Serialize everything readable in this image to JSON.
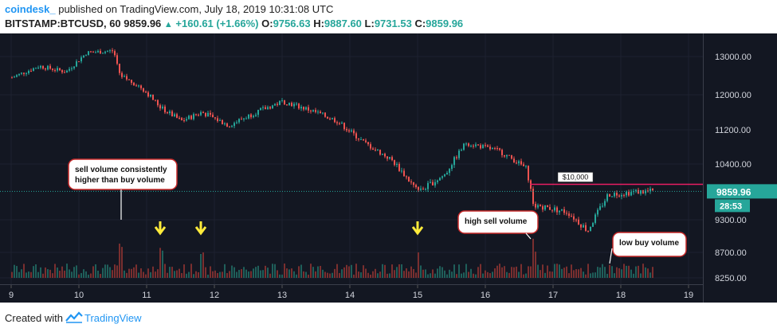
{
  "header": {
    "brand": "coindesk_",
    "published": "published on TradingView.com, July 18, 2019 10:31:08 UTC",
    "symbol": "BITSTAMP:BTCUSD, 60",
    "last": "9859.96",
    "change": "+160.61 (+1.66%)",
    "o_label": "O:",
    "o_value": "9756.63",
    "h_label": "H:",
    "h_value": "9887.60",
    "l_label": "L:",
    "l_value": "9731.53",
    "c_label": "C:",
    "c_value": "9859.96"
  },
  "footer": {
    "created_with": "Created with",
    "brand": "TradingView"
  },
  "colors": {
    "up": "#26a69a",
    "down": "#ef5350",
    "background": "#131722",
    "annotation_arrow": "#ffeb3b",
    "level_line": "#e91e63",
    "last_price": "#26a69a"
  },
  "chart_data": {
    "type": "candlestick",
    "price_axis": {
      "ticks": [
        13000,
        12000,
        11200,
        10400,
        9300,
        8700,
        8250
      ],
      "tick_labels": [
        "13000.00",
        "12000.00",
        "11200.00",
        "10400.00",
        "9300.00",
        "8700.00",
        "8250.00"
      ]
    },
    "time_axis": {
      "ticks": [
        "9",
        "10",
        "11",
        "12",
        "13",
        "14",
        "15",
        "16",
        "17",
        "18",
        "19"
      ]
    },
    "last_price_label": "9859.96",
    "countdown_label": "28:53",
    "level_line": {
      "price": 10000,
      "label": "$10,000"
    },
    "price_path": [
      [
        "9",
        12450
      ],
      [
        "9.4",
        12750
      ],
      [
        "9.8",
        12600
      ],
      [
        "10.1",
        13100
      ],
      [
        "10.5",
        13150
      ],
      [
        "10.6",
        12500
      ],
      [
        "10.9",
        12200
      ],
      [
        "11.2",
        11700
      ],
      [
        "11.5",
        11400
      ],
      [
        "11.8",
        11600
      ],
      [
        "12.2",
        11300
      ],
      [
        "12.6",
        11600
      ],
      [
        "13.0",
        11850
      ],
      [
        "13.4",
        11650
      ],
      [
        "13.8",
        11400
      ],
      [
        "14.2",
        10900
      ],
      [
        "14.6",
        10500
      ],
      [
        "15.0",
        9850
      ],
      [
        "15.4",
        10200
      ],
      [
        "15.7",
        10900
      ],
      [
        "16.2",
        10700
      ],
      [
        "16.6",
        10300
      ],
      [
        "16.7",
        9600
      ],
      [
        "17.2",
        9450
      ],
      [
        "17.5",
        9100
      ],
      [
        "17.8",
        9800
      ],
      [
        "18.2",
        9850
      ],
      [
        "18.4",
        9860
      ]
    ],
    "annotations": [
      {
        "text_line1": "sell volume consistently",
        "text_line2": "higher than buy volume",
        "day": "10.6"
      },
      {
        "text_line1": "high sell volume",
        "text_line2": "",
        "day": "16.6"
      },
      {
        "text_line1": "low buy volume",
        "text_line2": "",
        "day": "17.7"
      }
    ],
    "volume_spikes": [
      {
        "day": "10.6",
        "side": "sell"
      },
      {
        "day": "11.2",
        "side": "sell"
      },
      {
        "day": "11.8",
        "side": "sell"
      },
      {
        "day": "15.0",
        "side": "sell"
      },
      {
        "day": "16.7",
        "side": "sell"
      }
    ]
  }
}
